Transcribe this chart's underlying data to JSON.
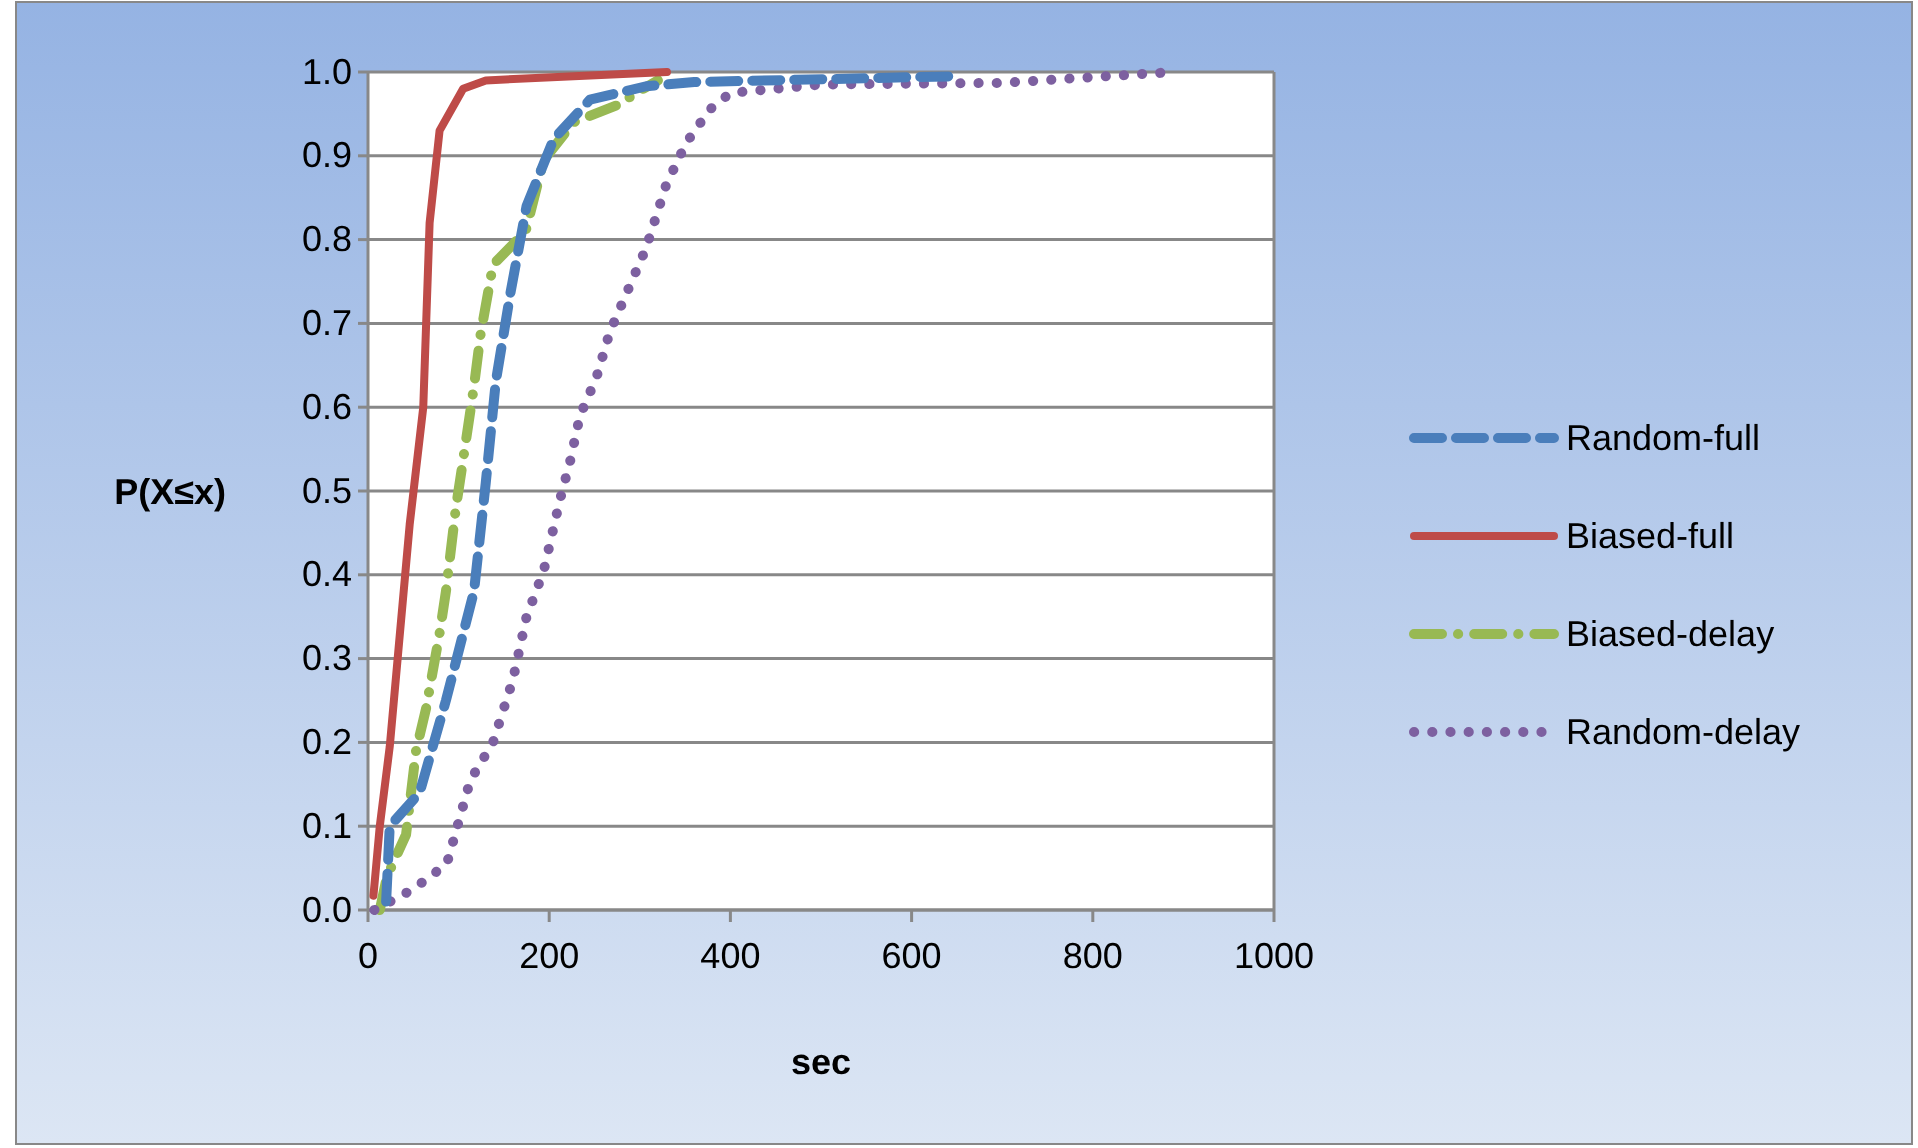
{
  "chart_data": {
    "type": "line",
    "xlabel": "sec",
    "ylabel": "P(X≤x)",
    "xlim": [
      0,
      1000
    ],
    "xticks": [
      0,
      200,
      400,
      600,
      800,
      1000
    ],
    "ylim": [
      0,
      1
    ],
    "yticks": [
      {
        "value": 0,
        "label": "0.0"
      },
      {
        "value": 0.1,
        "label": "0.1"
      },
      {
        "value": 0.2,
        "label": "0.2"
      },
      {
        "value": 0.3,
        "label": "0.3"
      },
      {
        "value": 0.4,
        "label": "0.4"
      },
      {
        "value": 0.5,
        "label": "0.5"
      },
      {
        "value": 0.6,
        "label": "0.6"
      },
      {
        "value": 0.7,
        "label": "0.7"
      },
      {
        "value": 0.8,
        "label": "0.8"
      },
      {
        "value": 0.9,
        "label": "0.9"
      },
      {
        "value": 1,
        "label": "1.0"
      }
    ],
    "grid": "y",
    "legend": "right",
    "series": [
      {
        "name": "Random-full",
        "color": "#4a7ebb",
        "line_style": "dashed",
        "x": [
          20,
          24,
          57,
          86,
          117,
          130,
          141,
          157,
          175,
          205,
          245,
          307,
          360,
          650
        ],
        "values": [
          0.01,
          0.1,
          0.14,
          0.25,
          0.38,
          0.51,
          0.63,
          0.735,
          0.84,
          0.92,
          0.967,
          0.983,
          0.988,
          0.995
        ]
      },
      {
        "name": "Biased-full",
        "color": "#be4b48",
        "line_style": "solid",
        "x": [
          6,
          13,
          24,
          46,
          61,
          68,
          79,
          105,
          130,
          330
        ],
        "values": [
          0.017,
          0.1,
          0.195,
          0.46,
          0.6,
          0.82,
          0.93,
          0.98,
          0.99,
          1
        ]
      },
      {
        "name": "Biased-delay",
        "color": "#98b954",
        "line_style": "dashdot",
        "x": [
          13,
          21,
          42,
          53,
          64,
          79,
          86,
          97,
          104,
          117,
          124,
          138,
          174,
          194,
          227,
          274,
          304,
          320
        ],
        "values": [
          0,
          0.04,
          0.09,
          0.19,
          0.24,
          0.33,
          0.38,
          0.48,
          0.53,
          0.625,
          0.685,
          0.77,
          0.81,
          0.895,
          0.94,
          0.96,
          0.98,
          0.99
        ]
      },
      {
        "name": "Random-delay",
        "color": "#7d60a0",
        "line_style": "dotted",
        "x": [
          7,
          50,
          87,
          113,
          138,
          160,
          175,
          194,
          212,
          223,
          234,
          252,
          267,
          285,
          307,
          329,
          351,
          377,
          400,
          500,
          700,
          786,
          890
        ],
        "values": [
          0,
          0.025,
          0.055,
          0.155,
          0.2,
          0.275,
          0.35,
          0.405,
          0.49,
          0.535,
          0.59,
          0.635,
          0.69,
          0.735,
          0.79,
          0.865,
          0.915,
          0.955,
          0.975,
          0.985,
          0.987,
          0.993,
          1
        ]
      }
    ]
  }
}
